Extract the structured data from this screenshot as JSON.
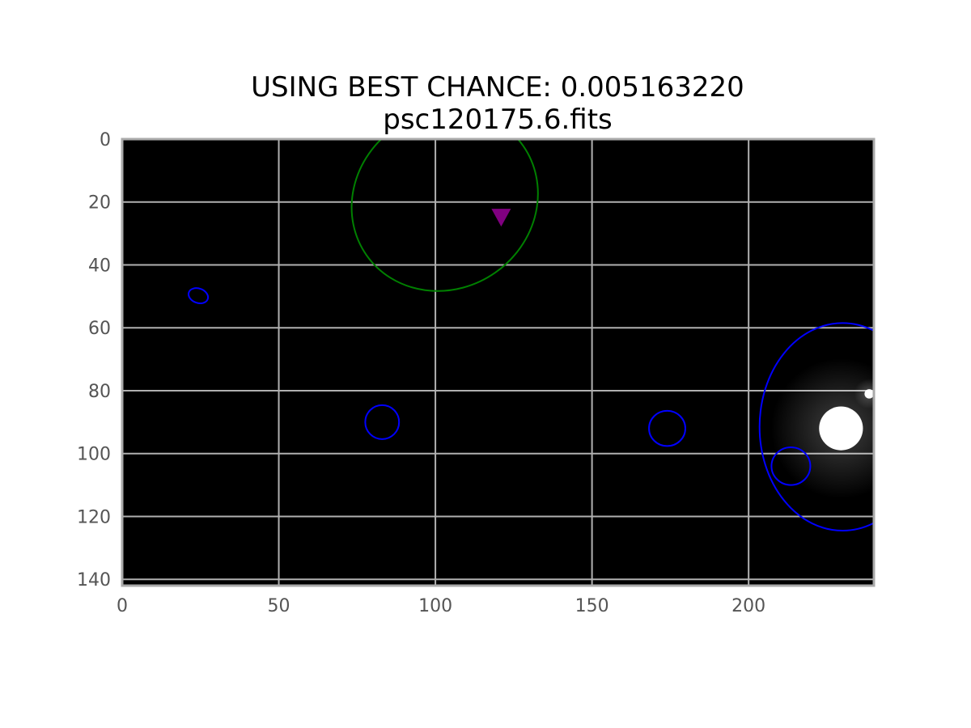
{
  "chart_data": {
    "type": "image",
    "title": "USING BEST CHANCE: 0.005163220",
    "subtitle": "psc120175.6.fits",
    "xlabel": "",
    "ylabel": "",
    "xlim": [
      0,
      240
    ],
    "ylim": [
      142,
      0
    ],
    "xticks": [
      0,
      50,
      100,
      150,
      200
    ],
    "yticks": [
      0,
      20,
      40,
      60,
      80,
      100,
      120,
      140
    ],
    "grid": true,
    "background_color": "#000000",
    "grid_color": "#b0b0b0",
    "ellipses": [
      {
        "name": "blue",
        "color": "#0000ff",
        "cx": 24.3,
        "cy": 49.8,
        "rx": 3.2,
        "ry": 2.3,
        "angle": 20
      },
      {
        "name": "blue",
        "color": "#0000ff",
        "cx": 83.0,
        "cy": 90.0,
        "rx": 5.4,
        "ry": 5.4,
        "angle": 0
      },
      {
        "name": "blue",
        "color": "#0000ff",
        "cx": 174.0,
        "cy": 92.0,
        "rx": 5.8,
        "ry": 5.6,
        "angle": 0
      },
      {
        "name": "blue",
        "color": "#0000ff",
        "cx": 213.5,
        "cy": 104.0,
        "rx": 6.2,
        "ry": 6.0,
        "angle": 0
      },
      {
        "name": "blue",
        "color": "#0000ff",
        "cx": 230.0,
        "cy": 91.5,
        "rx": 26.5,
        "ry": 33.0,
        "angle": 0
      },
      {
        "name": "green",
        "color": "#008000",
        "cx": 103.0,
        "cy": 19.5,
        "rx": 30.5,
        "ry": 28.0,
        "angle": -35
      }
    ],
    "markers": [
      {
        "shape": "triangle-down",
        "color": "#800080",
        "x": 121.0,
        "y": 25.0
      }
    ],
    "bright_sources": [
      {
        "x": 229.5,
        "y": 92.0,
        "radius": 7.0
      },
      {
        "x": 238.5,
        "y": 81.0,
        "radius": 1.5
      }
    ]
  }
}
